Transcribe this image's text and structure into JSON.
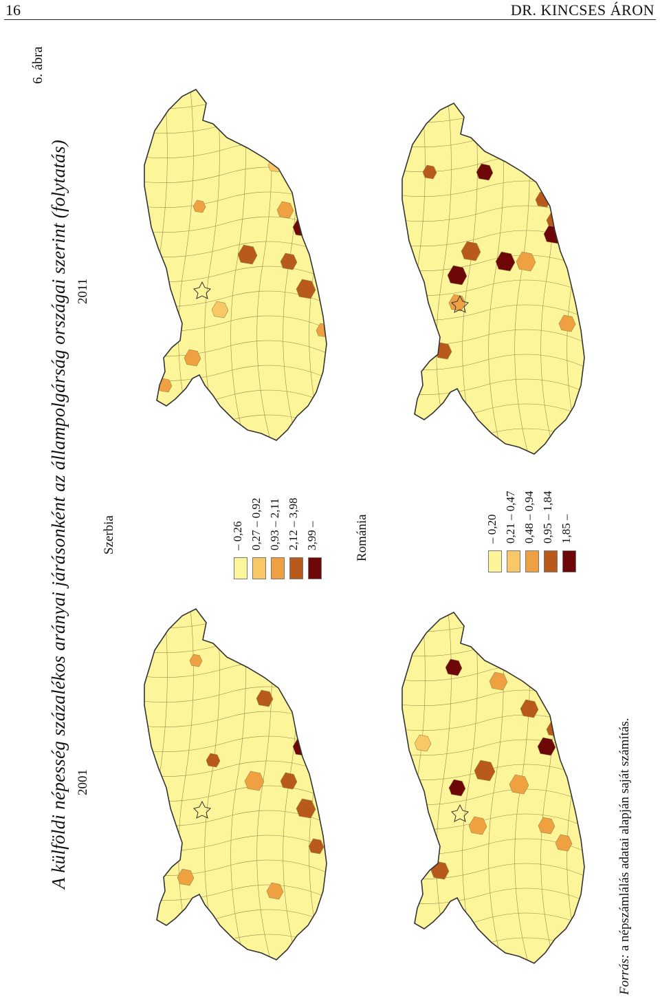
{
  "header": {
    "page_number": "16",
    "author": "DR. KINCSES ÁRON"
  },
  "figure": {
    "label": "6. ábra",
    "title": "A külföldi népesség százalékos arányai járásonként az állampolgárság országai szerint (folytatás)",
    "years": {
      "y2011": "2011",
      "y2001": "2001"
    }
  },
  "legends": {
    "serbia": {
      "title": "Szerbia",
      "classes": [
        {
          "label": "– 0,26",
          "color": "#fcf59a"
        },
        {
          "label": "0,27 – 0,92",
          "color": "#f8c866"
        },
        {
          "label": "0,93 – 2,11",
          "color": "#efa040"
        },
        {
          "label": "2,12 – 3,98",
          "color": "#b85a1c"
        },
        {
          "label": "3,99 –",
          "color": "#6e0808"
        }
      ]
    },
    "romania": {
      "title": "Románia",
      "classes": [
        {
          "label": "– 0,20",
          "color": "#fcf59a"
        },
        {
          "label": "0,21 – 0,47",
          "color": "#f8c866"
        },
        {
          "label": "0,48 – 0,94",
          "color": "#efa040"
        },
        {
          "label": "0,95 – 1,84",
          "color": "#b85a1c"
        },
        {
          "label": "1,85 –",
          "color": "#6e0808"
        }
      ]
    }
  },
  "source": {
    "label": "Forrás:",
    "text": "a népszámlálás adatai alapján saját számítás."
  },
  "colors": {
    "base_fill": "#fcf59a",
    "district_border": "#9a8a4a",
    "county_border": "#333333"
  }
}
